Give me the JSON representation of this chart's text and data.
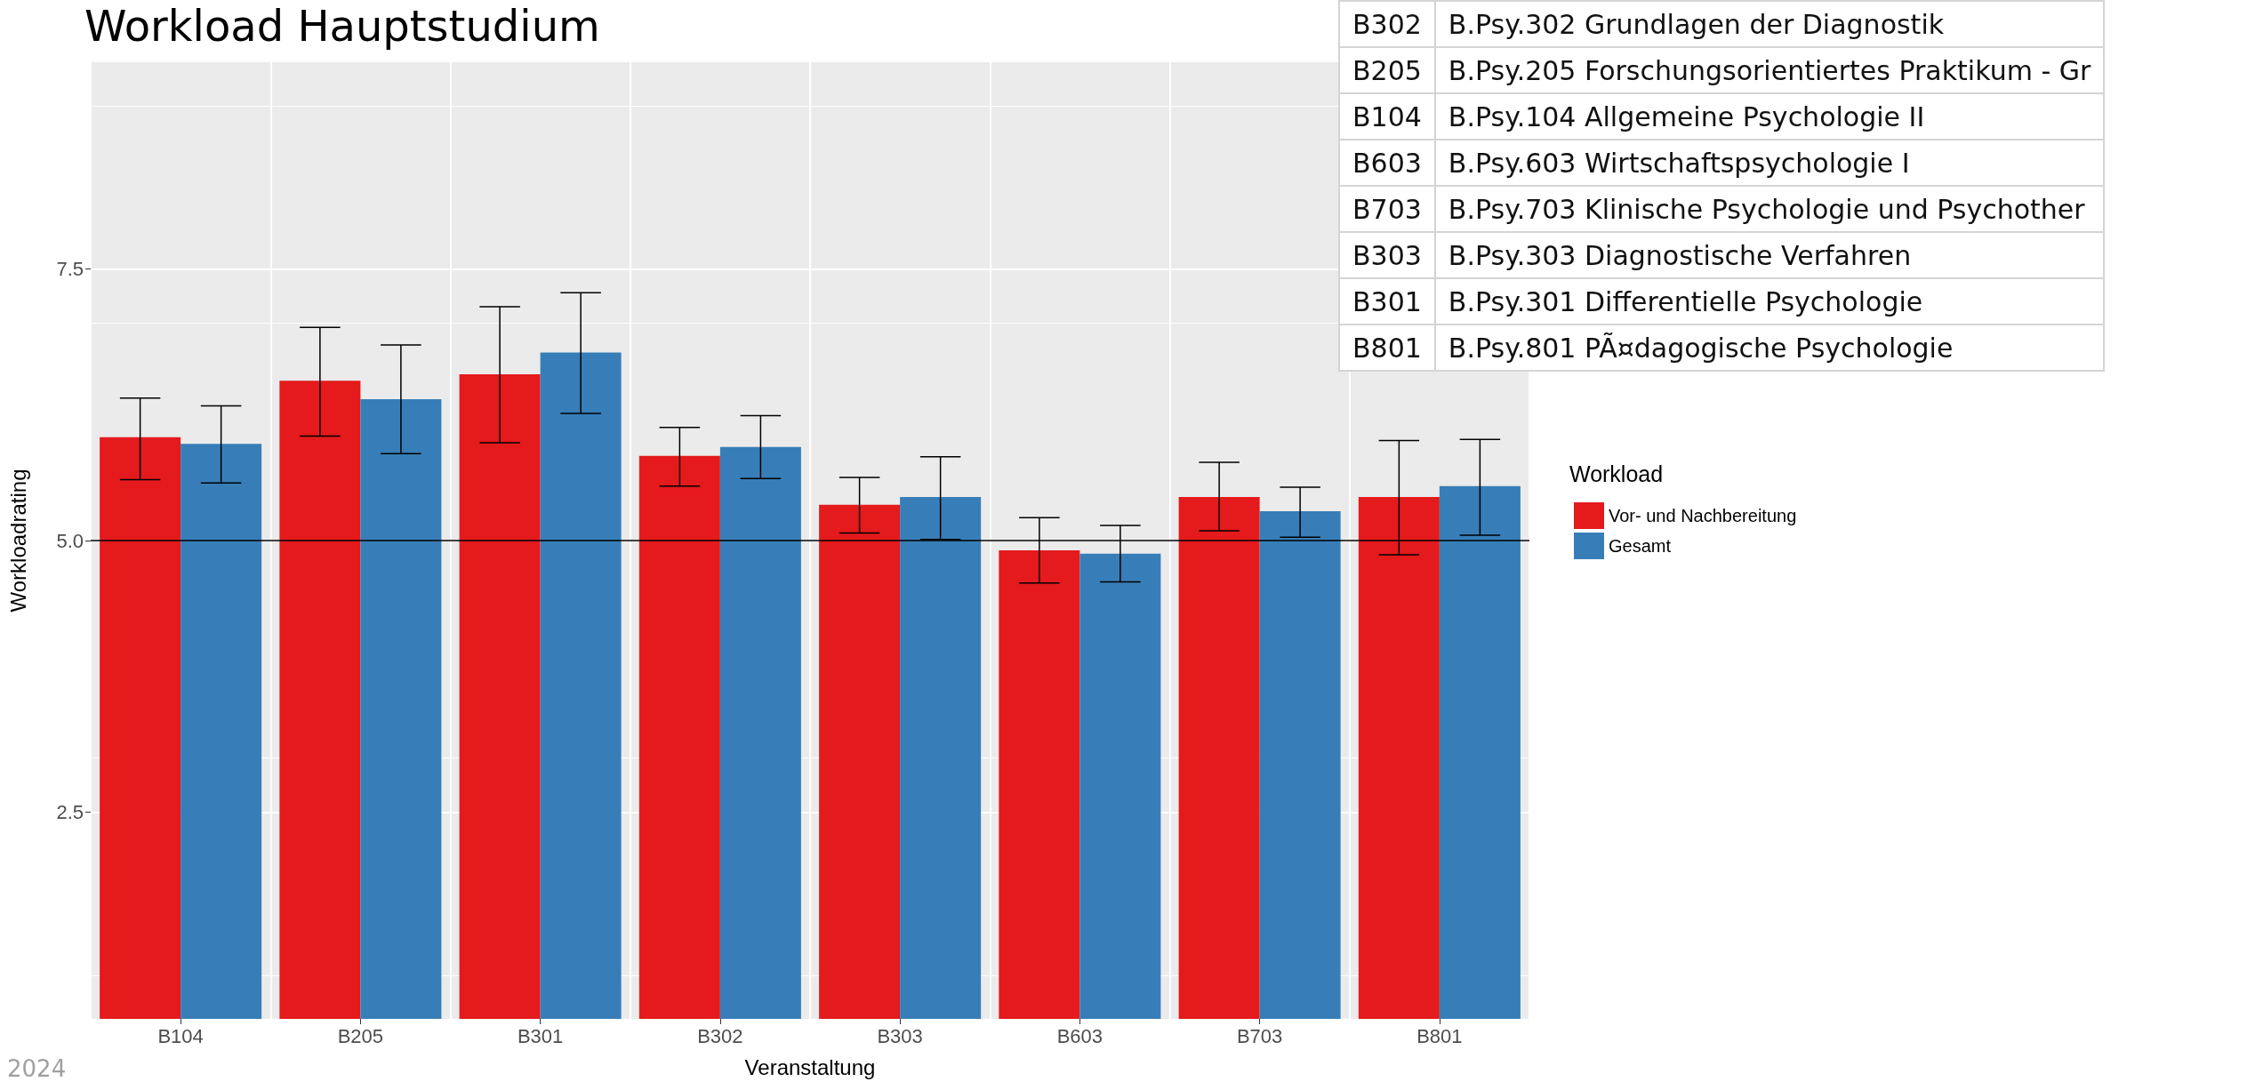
{
  "chart_data": [
    {
      "type": "bar",
      "title": "Workload Hauptstudium",
      "xlabel": "Veranstaltung",
      "ylabel": "Workloadrating",
      "legend_title": "Workload",
      "categories": [
        "B104",
        "B205",
        "B301",
        "B302",
        "B303",
        "B603",
        "B703",
        "B801"
      ],
      "series": [
        {
          "name": "Vor- und Nachbereitung",
          "color": "#e41a1c",
          "values": [
            5.95,
            6.47,
            6.53,
            5.78,
            5.33,
            4.91,
            5.4,
            5.4
          ],
          "errors": [
            [
              5.56,
              6.31
            ],
            [
              5.96,
              6.96
            ],
            [
              5.9,
              7.15
            ],
            [
              5.5,
              6.04
            ],
            [
              5.07,
              5.58
            ],
            [
              4.61,
              5.21
            ],
            [
              5.09,
              5.72
            ],
            [
              4.87,
              5.92
            ]
          ]
        },
        {
          "name": "Gesamt",
          "color": "#377eb8",
          "values": [
            5.89,
            6.3,
            6.73,
            5.86,
            5.4,
            4.88,
            5.27,
            5.5
          ],
          "errors": [
            [
              5.53,
              6.24
            ],
            [
              5.8,
              6.8
            ],
            [
              6.17,
              7.28
            ],
            [
              5.57,
              6.15
            ],
            [
              5.01,
              5.77
            ],
            [
              4.62,
              5.14
            ],
            [
              5.03,
              5.49
            ],
            [
              5.05,
              5.93
            ]
          ]
        }
      ],
      "ylim": [
        0.6,
        9.4
      ],
      "yticks": [
        2.5,
        {
          "value": 5,
          "label": "5.0"
        },
        7.5
      ],
      "grid": true,
      "legend": "right",
      "ref_lines": [
        {
          "axis": "y",
          "value": 5,
          "color": "#000000"
        }
      ],
      "annotations": [
        "2024"
      ]
    },
    {
      "type": "other",
      "annotations": [
        "B302",
        "B.Psy.302 Grundlagen der Diagnostik",
        "B205",
        "B.Psy.205 Forschungsorientiertes Praktikum - Gr",
        "B104",
        "B.Psy.104 Allgemeine Psychologie II",
        "B603",
        "B.Psy.603 Wirtschaftspsychologie I",
        "B703",
        "B.Psy.703 Klinische Psychologie und Psychother",
        "B303",
        "B.Psy.303 Diagnostische Verfahren",
        "B301",
        "B.Psy.301 Differentielle Psychologie",
        "B801",
        "B.Psy.801 PÃ¤dagogische Psychologie"
      ]
    }
  ]
}
